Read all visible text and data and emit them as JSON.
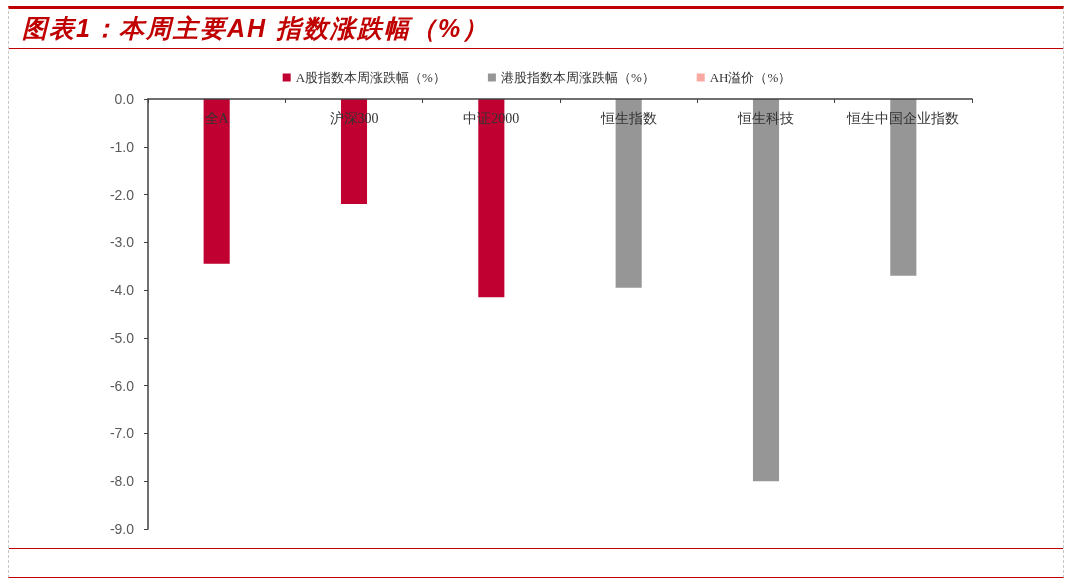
{
  "chart_data": {
    "type": "bar",
    "title": "图表1：本周主要AH 指数涨跌幅（%）",
    "categories": [
      "全A",
      "沪深300",
      "中证2000",
      "恒生指数",
      "恒生科技",
      "恒生中国企业指数"
    ],
    "series": [
      {
        "name": "A股指数本周涨跌幅（%）",
        "color": "#c00030",
        "values": [
          -3.45,
          -2.2,
          -4.15,
          null,
          null,
          null
        ]
      },
      {
        "name": "港股指数本周涨跌幅（%）",
        "color": "#969696",
        "values": [
          null,
          null,
          null,
          -3.95,
          -8.0,
          -3.7
        ]
      },
      {
        "name": "AH溢价（%）",
        "color": "#f8a9a0",
        "values": [
          null,
          null,
          null,
          null,
          null,
          null
        ]
      }
    ],
    "stacked": true,
    "ylim": [
      -9,
      0
    ],
    "yticks": [
      {
        "value": 0,
        "label": "0.0"
      },
      {
        "value": -1,
        "label": "-1.0"
      },
      {
        "value": -2,
        "label": "-2.0"
      },
      {
        "value": -3,
        "label": "-3.0"
      },
      {
        "value": -4,
        "label": "-4.0"
      },
      {
        "value": -5,
        "label": "-5.0"
      },
      {
        "value": -6,
        "label": "-6.0"
      },
      {
        "value": -7,
        "label": "-7.0"
      },
      {
        "value": -8,
        "label": "-8.0"
      },
      {
        "value": -9,
        "label": "-9.0"
      }
    ],
    "grid": false,
    "legend": "top"
  }
}
